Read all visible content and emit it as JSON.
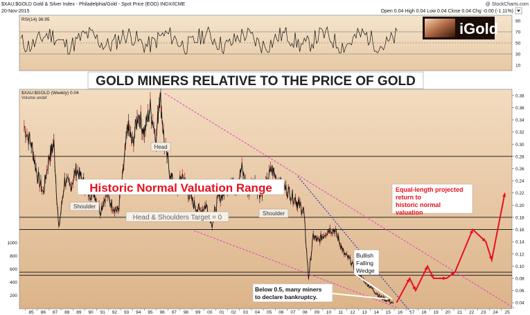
{
  "header": {
    "symbol_line": "$XAU:$GOLD Gold & Silver Index - Philadelphia/Gold - Spot Price (EOD) INDX/ICME",
    "copyright": "@ StockCharts.com",
    "date": "20-Nov-2015",
    "quote": "Open 0.04  High 0.04  Low 0.04  Close 0.04  Chg -0.00 (-1.11%)"
  },
  "logo": {
    "text": "iGold"
  },
  "rsi_panel": {
    "label": "RSI(14) 36.95",
    "yticks": [
      90,
      70,
      50,
      30,
      10
    ],
    "ylim": [
      0,
      100
    ]
  },
  "main_panel": {
    "title_banner": "GOLD MINERS RELATIVE TO THE PRICE OF GOLD",
    "legend_symbol": "$XAU:$GOLD (Weekly) 0.04",
    "legend_volume": "Volume undef",
    "yticks": [
      "0.38",
      "0.36",
      "0.34",
      "0.32",
      "0.30",
      "0.28",
      "0.26",
      "0.24",
      "0.22",
      "0.20",
      "0.18",
      "0.16",
      "0.14",
      "0.12",
      "0.10",
      "0.08",
      "0.06",
      "0.04"
    ],
    "volume_ticks": [
      "1000",
      "800",
      "600",
      "400",
      "200"
    ],
    "xticks": [
      "85",
      "86",
      "87",
      "88",
      "89",
      "90",
      "91",
      "92",
      "93",
      "94",
      "95",
      "96",
      "97",
      "98",
      "99",
      "00",
      "01",
      "02",
      "03",
      "04",
      "05",
      "06",
      "07",
      "08",
      "09",
      "10",
      "11",
      "12",
      "13",
      "14",
      "15",
      "16",
      "17",
      "18",
      "19",
      "20",
      "21",
      "22",
      "23",
      "24",
      "25"
    ],
    "annotations": {
      "head": "Head",
      "shoulder_left": "Shoulder",
      "shoulder_right": "Shoulder",
      "hs_target": "Head & Shoulders Target = 0",
      "valuation_range": "Historic Normal Valuation Range",
      "projection": "Equal-length projected return to historic normal valuation",
      "wedge": "Bullish Falling Wedge",
      "bankruptcy": "Below 0.5, many miners to declare bankruptcy."
    }
  },
  "colors": {
    "panel_bg": "#e9c9a2",
    "price_line": "#111111",
    "bar_up": "#cc1111",
    "annotation_red": "#e8101e",
    "wedge_blue": "#2233cc",
    "trend_magenta": "#e040c0",
    "hline": "#222222"
  },
  "chart_data": {
    "type": "line",
    "title": "GOLD MINERS RELATIVE TO THE PRICE OF GOLD",
    "series": [
      {
        "name": "$XAU:$GOLD (Weekly)",
        "x": [
          1984.9,
          1985.5,
          1986.0,
          1986.5,
          1987.0,
          1987.4,
          1987.8,
          1988.3,
          1988.8,
          1989.3,
          1989.8,
          1990.3,
          1990.8,
          1991.3,
          1991.8,
          1992.3,
          1992.8,
          1993.2,
          1993.6,
          1994.0,
          1994.5,
          1995.0,
          1995.5,
          1996.0,
          1996.3,
          1996.7,
          1997.2,
          1997.7,
          1998.2,
          1998.7,
          1999.2,
          1999.7,
          2000.2,
          2000.7,
          2001.2,
          2001.7,
          2002.2,
          2002.7,
          2003.2,
          2003.7,
          2004.2,
          2004.7,
          2005.2,
          2005.7,
          2006.2,
          2006.7,
          2007.2,
          2007.7,
          2008.0,
          2008.4,
          2008.8,
          2009.2,
          2009.6,
          2010.0,
          2010.5,
          2011.0,
          2011.4,
          2011.8,
          2012.3,
          2012.8,
          2013.3,
          2013.8,
          2014.3,
          2014.8,
          2015.3,
          2015.9
        ],
        "values": [
          0.33,
          0.3,
          0.25,
          0.22,
          0.28,
          0.3,
          0.16,
          0.24,
          0.23,
          0.26,
          0.24,
          0.22,
          0.22,
          0.19,
          0.22,
          0.2,
          0.19,
          0.25,
          0.33,
          0.3,
          0.35,
          0.32,
          0.36,
          0.31,
          0.385,
          0.3,
          0.25,
          0.22,
          0.25,
          0.22,
          0.2,
          0.19,
          0.2,
          0.17,
          0.21,
          0.22,
          0.24,
          0.23,
          0.26,
          0.22,
          0.24,
          0.22,
          0.23,
          0.26,
          0.24,
          0.23,
          0.22,
          0.21,
          0.2,
          0.19,
          0.08,
          0.15,
          0.14,
          0.15,
          0.16,
          0.16,
          0.14,
          0.12,
          0.11,
          0.09,
          0.08,
          0.07,
          0.06,
          0.05,
          0.045,
          0.04
        ]
      }
    ],
    "projection_path": {
      "x": [
        2016.2,
        2017.3,
        2017.8,
        2018.8,
        2019.3,
        2020.4,
        2021.1,
        2022.6,
        2023.7,
        2024.2,
        2025.3
      ],
      "values": [
        0.04,
        0.08,
        0.06,
        0.1,
        0.08,
        0.08,
        0.09,
        0.16,
        0.14,
        0.11,
        0.22
      ]
    },
    "horizontal_lines": [
      0.28,
      0.18,
      0.16,
      0.09,
      0.085
    ],
    "xlabel": "",
    "ylabel": "",
    "xlim": [
      1984.5,
      2025.9
    ],
    "ylim": [
      0.03,
      0.39
    ],
    "grid": false,
    "legend": "top-left"
  }
}
